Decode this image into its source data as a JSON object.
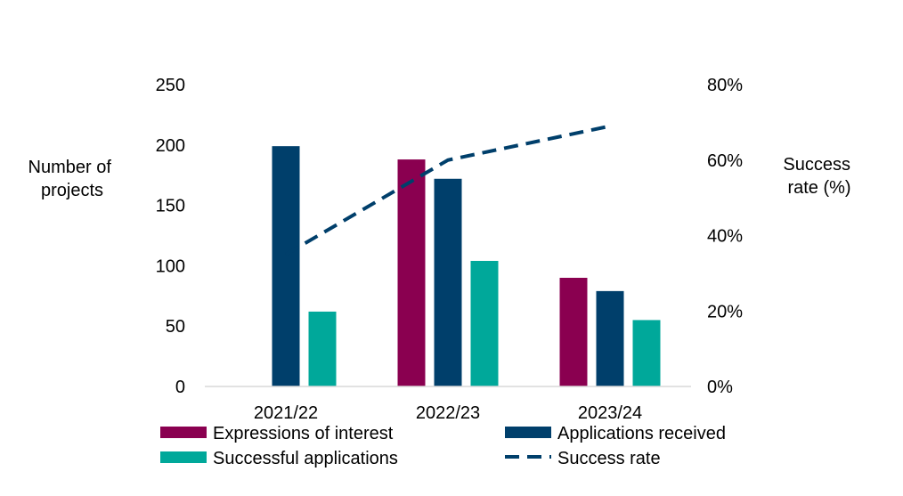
{
  "chart_data": {
    "type": "bar",
    "categories": [
      "2021/22",
      "2022/23",
      "2023/24"
    ],
    "series": [
      {
        "name": "Expressions of interest",
        "type": "bar",
        "axis": "left",
        "values": [
          null,
          188,
          90
        ],
        "color": "#8a0050"
      },
      {
        "name": "Applications received",
        "type": "bar",
        "axis": "left",
        "values": [
          199,
          172,
          79
        ],
        "color": "#003f6b"
      },
      {
        "name": "Successful applications",
        "type": "bar",
        "axis": "left",
        "values": [
          62,
          104,
          55
        ],
        "color": "#00a89a"
      },
      {
        "name": "Success rate",
        "type": "line",
        "axis": "right",
        "style": "dashed",
        "values": [
          35,
          60,
          69
        ],
        "color": "#003f6b"
      }
    ],
    "ylabel_left": [
      "Number of",
      "projects"
    ],
    "ylabel_right": [
      "Success",
      "rate (%)"
    ],
    "ylim_left": [
      0,
      250
    ],
    "yticks_left": [
      "0",
      "50",
      "100",
      "150",
      "200",
      "250"
    ],
    "ylim_right": [
      0,
      80
    ],
    "yticks_right": [
      "0%",
      "20%",
      "40%",
      "60%",
      "80%"
    ],
    "grid": false,
    "legend_position": "bottom"
  }
}
